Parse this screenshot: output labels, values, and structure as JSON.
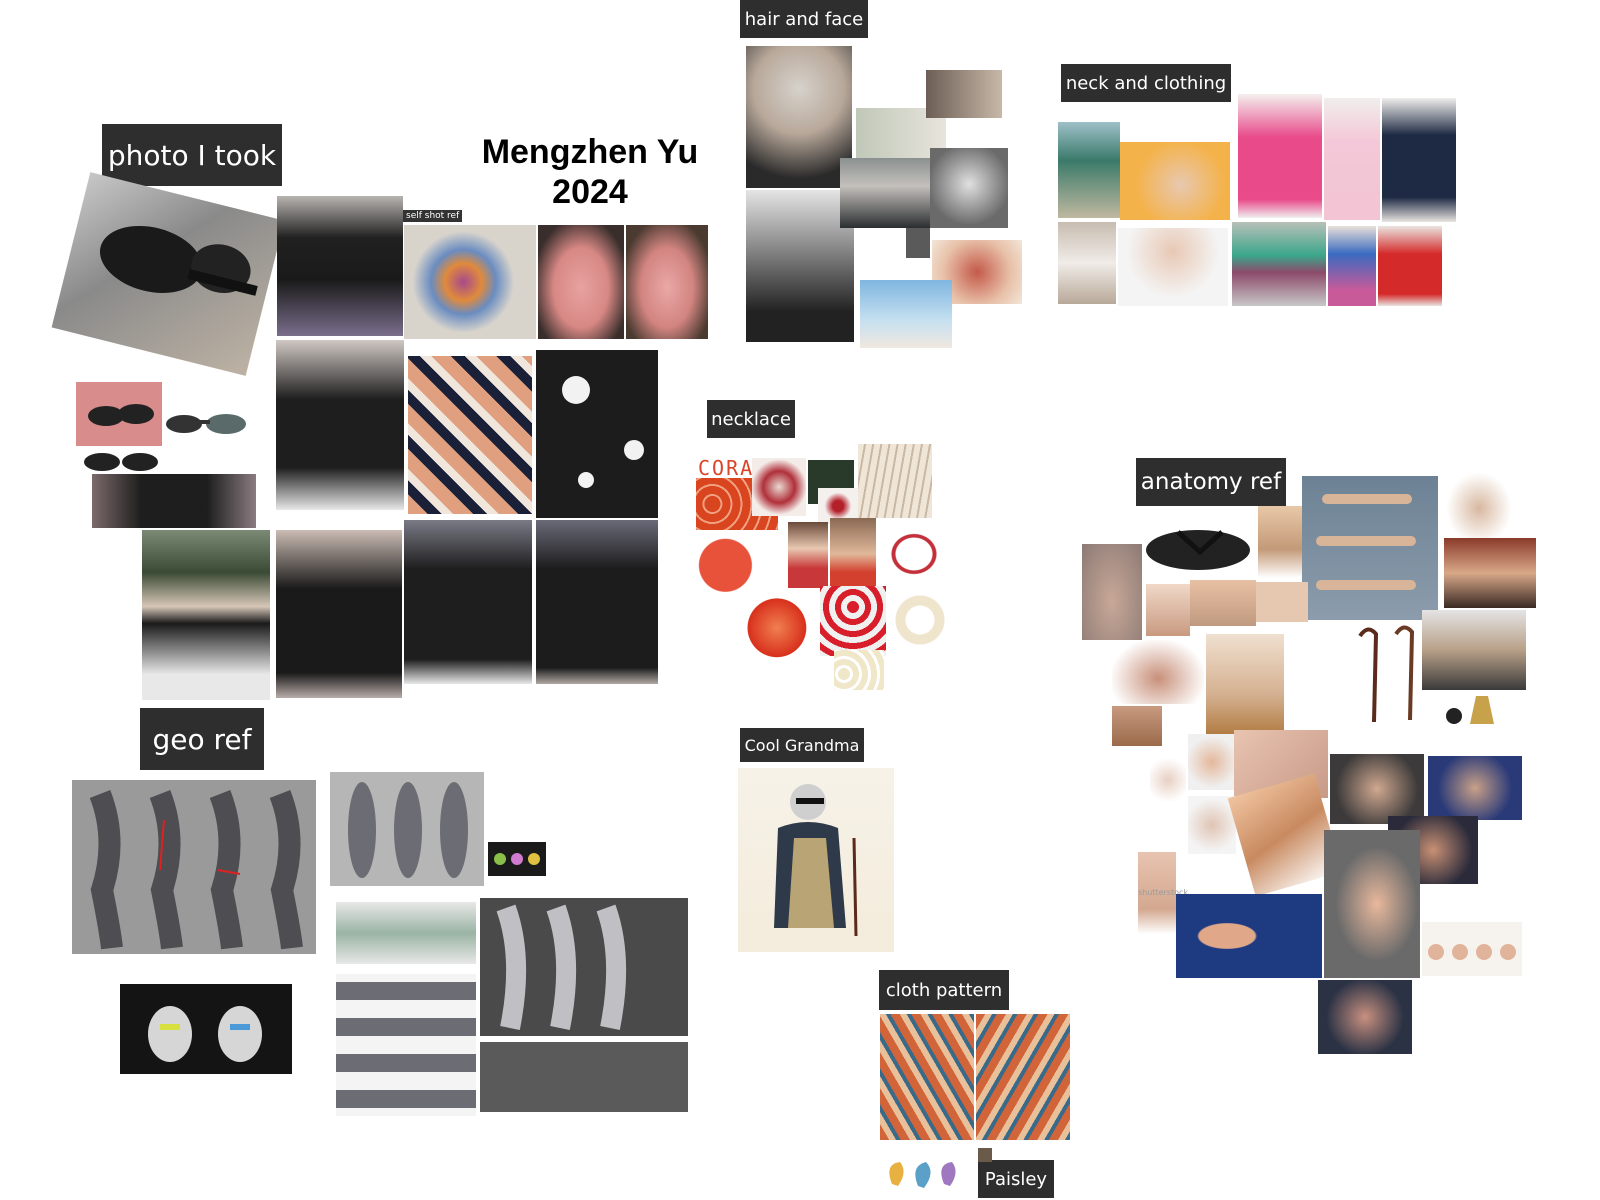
{
  "board": {
    "title_line1": "Mengzhen Yu",
    "title_line2": "2024"
  },
  "labels": {
    "photo_i_took": "photo I took",
    "hair_and_face": "hair and face",
    "neck_and_clothing": "neck and clothing",
    "necklace": "necklace",
    "anatomy_ref": "anatomy ref",
    "geo_ref": "geo ref",
    "cool_grandma": "Cool Grandma",
    "cloth_pattern": "cloth pattern",
    "paisley": "Paisley",
    "self_shot_ref": "self shot ref",
    "coral": "CORAL"
  },
  "colors": {
    "label_bg": "#2e2e2e",
    "label_text": "#ffffff",
    "canvas": "#ffffff"
  }
}
